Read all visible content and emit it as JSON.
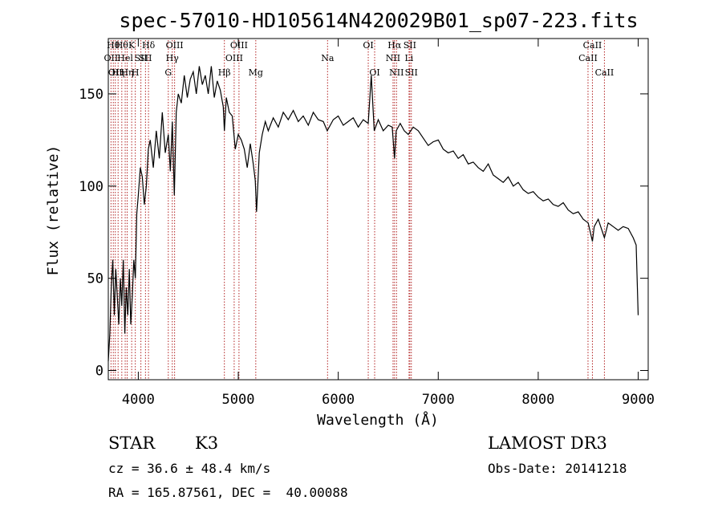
{
  "header": {
    "title": "spec-57010-HD105614N420029B01_sp07-223.fits"
  },
  "info": {
    "class_label": "STAR",
    "subclass_label": "K3",
    "redshift_text": "cz = 36.6 ± 48.4 km/s",
    "coords_text": "RA = 165.87561, DEC =  40.00088",
    "survey_text": "LAMOST DR3",
    "obsdate_text": "Obs-Date: 20141218"
  },
  "chart_data": {
    "type": "line",
    "title": "spec-57010-HD105614N420029B01_sp07-223.fits",
    "xlabel": "Wavelength (Å)",
    "ylabel": "Flux (relative)",
    "xlim": [
      3700,
      9100
    ],
    "ylim": [
      -5,
      180
    ],
    "grid": false,
    "x_ticks": [
      4000,
      5000,
      6000,
      7000,
      8000,
      9000
    ],
    "y_ticks": [
      0,
      50,
      100,
      150
    ],
    "line_color": "#000000",
    "marker_color": "#b22222",
    "series": [
      {
        "x": [
          3700,
          3715,
          3730,
          3745,
          3760,
          3775,
          3790,
          3805,
          3820,
          3835,
          3850,
          3865,
          3880,
          3895,
          3910,
          3925,
          3940,
          3955,
          3970,
          3985,
          4000,
          4020,
          4040,
          4060,
          4080,
          4100,
          4120,
          4150,
          4180,
          4210,
          4240,
          4270,
          4300,
          4320,
          4340,
          4360,
          4380,
          4400,
          4430,
          4460,
          4490,
          4520,
          4550,
          4580,
          4610,
          4640,
          4670,
          4700,
          4730,
          4760,
          4790,
          4820,
          4850,
          4861,
          4880,
          4910,
          4940,
          4970,
          5000,
          5030,
          5060,
          5090,
          5120,
          5150,
          5170,
          5183,
          5195,
          5210,
          5240,
          5270,
          5300,
          5350,
          5400,
          5450,
          5500,
          5550,
          5600,
          5650,
          5700,
          5750,
          5800,
          5850,
          5890,
          5950,
          6000,
          6050,
          6100,
          6150,
          6200,
          6250,
          6300,
          6330,
          6360,
          6400,
          6450,
          6500,
          6540,
          6563,
          6580,
          6620,
          6660,
          6700,
          6750,
          6800,
          6850,
          6900,
          6950,
          7000,
          7050,
          7100,
          7150,
          7200,
          7250,
          7300,
          7350,
          7400,
          7450,
          7500,
          7550,
          7600,
          7650,
          7700,
          7750,
          7800,
          7850,
          7900,
          7950,
          8000,
          8050,
          8100,
          8150,
          8200,
          8250,
          8300,
          8350,
          8400,
          8450,
          8500,
          8542,
          8560,
          8600,
          8662,
          8700,
          8750,
          8800,
          8850,
          8900,
          8950,
          8980,
          9000
        ],
        "y": [
          5,
          20,
          45,
          60,
          30,
          55,
          40,
          25,
          50,
          35,
          60,
          20,
          45,
          30,
          55,
          25,
          40,
          60,
          50,
          85,
          95,
          110,
          105,
          90,
          100,
          120,
          125,
          110,
          130,
          115,
          140,
          118,
          128,
          108,
          135,
          95,
          140,
          150,
          145,
          160,
          148,
          158,
          162,
          150,
          165,
          155,
          160,
          150,
          165,
          148,
          157,
          152,
          143,
          130,
          148,
          140,
          138,
          120,
          128,
          125,
          120,
          110,
          123,
          112,
          103,
          86,
          100,
          118,
          128,
          135,
          130,
          137,
          132,
          140,
          136,
          141,
          135,
          138,
          133,
          140,
          136,
          135,
          130,
          136,
          138,
          133,
          135,
          137,
          132,
          136,
          134,
          160,
          130,
          136,
          130,
          133,
          132,
          115,
          130,
          134,
          130,
          128,
          132,
          130,
          126,
          122,
          124,
          125,
          120,
          118,
          119,
          115,
          117,
          112,
          113,
          110,
          108,
          112,
          106,
          104,
          102,
          105,
          100,
          102,
          98,
          96,
          97,
          94,
          92,
          93,
          90,
          89,
          91,
          87,
          85,
          86,
          82,
          80,
          70,
          78,
          82,
          72,
          80,
          78,
          76,
          78,
          77,
          72,
          68,
          30
        ]
      }
    ],
    "line_markers": [
      {
        "w": 3727,
        "label": "OII",
        "row": 1
      },
      {
        "w": 3750,
        "label": "Hθ",
        "row": 0
      },
      {
        "w": 3770,
        "label": "OII",
        "row": 2
      },
      {
        "w": 3798,
        "label": "Hη",
        "row": 2
      },
      {
        "w": 3835,
        "label": "Hθ",
        "row": 0
      },
      {
        "w": 3869,
        "label": "Hel",
        "row": 1
      },
      {
        "w": 3889,
        "label": "Hη",
        "row": 2
      },
      {
        "w": 3934,
        "label": "K",
        "row": 0
      },
      {
        "w": 3970,
        "label": "H",
        "row": 2
      },
      {
        "w": 4026,
        "label": "SII",
        "row": 1
      },
      {
        "w": 4072,
        "label": "SII",
        "row": 1
      },
      {
        "w": 4102,
        "label": "Hδ",
        "row": 0
      },
      {
        "w": 4300,
        "label": "G",
        "row": 2
      },
      {
        "w": 4340,
        "label": "Hγ",
        "row": 1
      },
      {
        "w": 4363,
        "label": "OIII",
        "row": 0
      },
      {
        "w": 4861,
        "label": "Hβ",
        "row": 2
      },
      {
        "w": 4959,
        "label": "OIII",
        "row": 1
      },
      {
        "w": 5007,
        "label": "OIII",
        "row": 0
      },
      {
        "w": 5175,
        "label": "Mg",
        "row": 2
      },
      {
        "w": 5893,
        "label": "Na",
        "row": 1
      },
      {
        "w": 6300,
        "label": "OI",
        "row": 0
      },
      {
        "w": 6364,
        "label": "OI",
        "row": 2
      },
      {
        "w": 6548,
        "label": "NII",
        "row": 1
      },
      {
        "w": 6563,
        "label": "Hα",
        "row": 0
      },
      {
        "w": 6583,
        "label": "NII",
        "row": 2
      },
      {
        "w": 6708,
        "label": "Li",
        "row": 1
      },
      {
        "w": 6716,
        "label": "SII",
        "row": 0
      },
      {
        "w": 6731,
        "label": "SII",
        "row": 2
      },
      {
        "w": 8498,
        "label": "CaII",
        "row": 1
      },
      {
        "w": 8542,
        "label": "CaII",
        "row": 0
      },
      {
        "w": 8662,
        "label": "CaII",
        "row": 2
      }
    ]
  }
}
